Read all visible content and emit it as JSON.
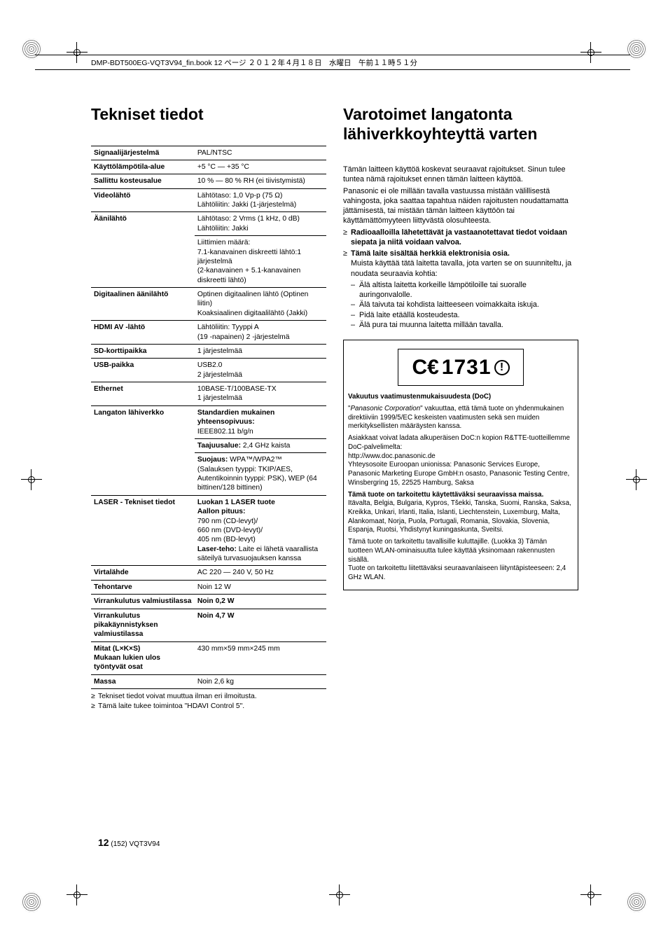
{
  "header": "DMP-BDT500EG-VQT3V94_fin.book  12 ページ  ２０１２年４月１８日　水曜日　午前１１時５１分",
  "left": {
    "title": "Tekniset tiedot",
    "rows": [
      {
        "label": "Signaalijärjestelmä",
        "value": "PAL/NTSC"
      },
      {
        "label": "Käyttölämpötila-alue",
        "value": "+5 °C — +35 °C"
      },
      {
        "label": "Sallittu kosteusalue",
        "value": "10 % — 80 % RH (ei tiivistymistä)"
      },
      {
        "label": "Videolähtö",
        "value": "Lähtötaso: 1,0 Vp-p (75 Ω)\nLähtöliitin: Jakki (1-järjestelmä)"
      },
      {
        "label": "Äänilähtö",
        "value": "Lähtötaso: 2 Vrms (1 kHz, 0 dB)\nLähtöliitin: Jakki"
      },
      {
        "label": "",
        "value": "Liittimien määrä:\n7.1-kanavainen diskreetti lähtö:1 järjestelmä\n(2-kanavainen + 5.1-kanavainen diskreetti lähtö)"
      },
      {
        "label": "Digitaalinen äänilähtö",
        "value": "Optinen digitaalinen lähtö (Optinen liitin)\nKoaksiaalinen digitaalilähtö (Jakki)"
      },
      {
        "label": "HDMI AV -lähtö",
        "value": "Lähtöliitin: Tyyppi A\n(19 -napainen) 2 -järjestelmä"
      },
      {
        "label": "SD-korttipaikka",
        "value": "1 järjestelmää"
      },
      {
        "label": "USB-paikka",
        "value": "USB2.0\n2 järjestelmää"
      },
      {
        "label": "Ethernet",
        "value": "10BASE-T/100BASE-TX\n1 järjestelmää"
      },
      {
        "label": "Langaton lähiverkko",
        "value": "<b>Standardien mukainen yhteensopivuus:</b>\nIEEE802.11 b/g/n"
      },
      {
        "label": "",
        "value": "<b>Taajuusalue:</b> 2,4 GHz kaista"
      },
      {
        "label": "",
        "value": "<b>Suojaus:</b> WPA™/WPA2™\n(Salauksen tyyppi: TKIP/AES, Autentikoinnin tyyppi: PSK), WEP (64 bittinen/128 bittinen)"
      },
      {
        "label": "LASER - Tekniset tiedot",
        "value": "<b>Luokan 1 LASER tuote</b>\n<b>Aallon pituus:</b>\n790 nm (CD-levyt)/\n660 nm (DVD-levyt)/\n405 nm (BD-levyt)\n<b>Laser-teho:</b> Laite ei lähetä vaarallista säteilyä turvasuojauksen kanssa"
      },
      {
        "label": "Virtalähde",
        "value": "AC 220 — 240 V, 50 Hz"
      },
      {
        "label": "Tehontarve",
        "value": "Noin 12 W"
      },
      {
        "label": "Virrankulutus valmiustilassa",
        "value": "<b>Noin 0,2 W</b>"
      },
      {
        "label": "Virrankulutus pikakäynnistyksen valmiustilassa",
        "value": "<b>Noin 4,7 W</b>"
      },
      {
        "label": "Mitat (L×K×S)\nMukaan lukien ulos työntyvät osat",
        "value": "430 mm×59 mm×245 mm"
      },
      {
        "label": "Massa",
        "value": "Noin 2,6 kg"
      }
    ],
    "notes": [
      "Tekniset tiedot voivat muuttua ilman eri ilmoitusta.",
      "Tämä laite tukee toimintoa \"HDAVI Control 5\"."
    ]
  },
  "right": {
    "title": "Varotoimet langatonta lähiverkkoyhteyttä varten",
    "paras": [
      "Tämän laitteen käyttöä koskevat seuraavat rajoitukset. Sinun tulee tuntea nämä rajoitukset ennen tämän laitteen käyttöä.",
      "Panasonic ei ole millään tavalla vastuussa mistään välillisestä vahingosta, joka saattaa tapahtua näiden rajoitusten noudattamatta jättämisestä, tai mistään tämän laitteen käyttöön tai käyttämättömyyteen liittyvästä olosuhteesta."
    ],
    "bullets": [
      {
        "bold": "Radioaalloilla lähetettävät ja vastaanotettavat tiedot voidaan siepata ja niitä voidaan valvoa."
      },
      {
        "bold": "Tämä laite sisältää herkkiä elektronisia osia.",
        "rest": "Muista käyttää tätä laitetta tavalla, jota varten se on suunniteltu, ja noudata seuraavia kohtia:"
      }
    ],
    "sublist": [
      "Älä altista laitetta korkeille lämpötiloille tai suoralle auringonvalolle.",
      "Älä taivuta tai kohdista laitteeseen voimakkaita iskuja.",
      "Pidä laite etäällä kosteudesta.",
      "Älä pura tai muunna laitetta millään tavalla."
    ],
    "ce_number": "1731",
    "doc": {
      "heading": "Vakuutus vaatimustenmukaisuudesta (DoC)",
      "p1": "\"<i>Panasonic Corporation</i>\" vakuuttaa, että tämä tuote on yhdenmukainen direktiiviin 1999/5/EC keskeisten vaatimusten sekä sen muiden merkityksellisten määräysten kanssa.",
      "p2": "Asiakkaat voivat ladata alkuperäisen DoC:n kopion R&TTE-tuotteillemme DoC-palvelimelta:",
      "url": "http://www.doc.panasonic.de",
      "p3": "Yhteysosoite Euroopan unionissa: Panasonic Services Europe, Panasonic Marketing Europe GmbH:n osasto, Panasonic Testing Centre, Winsbergring 15, 22525 Hamburg, Saksa",
      "p4b": "Tämä tuote on tarkoitettu käytettäväksi seuraavissa maissa.",
      "p5": "Itävalta, Belgia, Bulgaria, Kypros, Tšekki, Tanska, Suomi, Ranska, Saksa, Kreikka, Unkari, Irlanti, Italia, Islanti, Liechtenstein, Luxemburg, Malta, Alankomaat, Norja, Puola, Portugali, Romania, Slovakia, Slovenia, Espanja, Ruotsi, Yhdistynyt kuningaskunta, Sveitsi.",
      "p6": "Tämä tuote on tarkoitettu tavallisille kuluttajille. (Luokka 3) Tämän tuotteen WLAN-ominaisuutta tulee käyttää yksinomaan rakennusten sisällä.",
      "p7": "Tuote on tarkoitettu liitettäväksi seuraavanlaiseen liityntäpisteeseen: 2,4 GHz WLAN."
    }
  },
  "footer": {
    "page": "12",
    "code": "(152) VQT3V94"
  }
}
